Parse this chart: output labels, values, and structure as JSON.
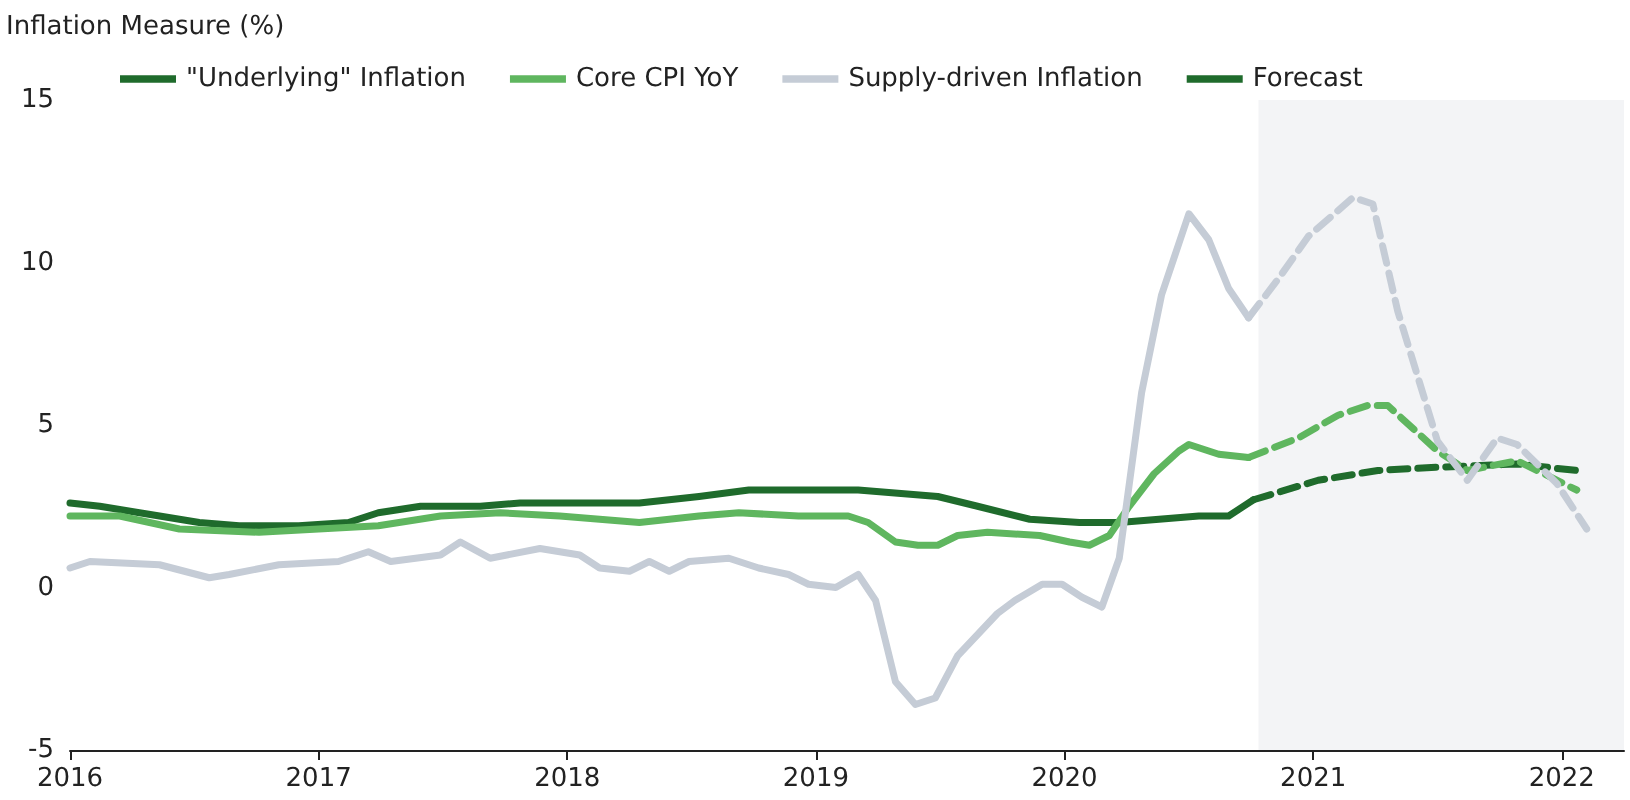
{
  "chart_data": {
    "type": "line",
    "ylabel": "Inflation Measure (%)",
    "xlim": [
      2016,
      2022.25
    ],
    "xticks": [
      2016,
      2017,
      2018,
      2019,
      2020,
      2021,
      2022
    ],
    "ylim": [
      -5,
      15
    ],
    "yticks": [
      -5,
      0,
      5,
      10,
      15
    ],
    "grid": false,
    "legend": "top",
    "marker": "none",
    "bands": [
      {
        "axis": "x",
        "from": 2020.78,
        "to": 2022.25,
        "color": "#f3f4f6"
      }
    ],
    "series": [
      {
        "name": "\"Underlying\" Inflation",
        "color": "#1f6b2c",
        "line_style": "solid",
        "x": [
          2016.0,
          2016.12,
          2016.36,
          2016.52,
          2016.68,
          2016.92,
          2017.12,
          2017.24,
          2017.41,
          2017.65,
          2017.81,
          2018.05,
          2018.29,
          2018.53,
          2018.73,
          2018.93,
          2019.17,
          2019.33,
          2019.49,
          2019.65,
          2019.86,
          2020.06,
          2020.22,
          2020.38,
          2020.54,
          2020.66,
          2020.76
        ],
        "values": [
          2.6,
          2.5,
          2.2,
          2.0,
          1.9,
          1.9,
          2.0,
          2.3,
          2.5,
          2.5,
          2.6,
          2.6,
          2.6,
          2.8,
          3.0,
          3.0,
          3.0,
          2.9,
          2.8,
          2.5,
          2.1,
          2.0,
          2.0,
          2.1,
          2.2,
          2.2,
          2.7
        ]
      },
      {
        "name": "Core CPI YoY",
        "color": "#5fb65f",
        "line_style": "solid",
        "x": [
          2016.0,
          2016.2,
          2016.44,
          2016.76,
          2017.0,
          2017.24,
          2017.49,
          2017.73,
          2017.97,
          2018.29,
          2018.53,
          2018.69,
          2018.93,
          2019.13,
          2019.21,
          2019.32,
          2019.41,
          2019.49,
          2019.57,
          2019.69,
          2019.9,
          2020.02,
          2020.1,
          2020.18,
          2020.26,
          2020.36,
          2020.46,
          2020.5,
          2020.62,
          2020.74
        ],
        "values": [
          2.2,
          2.2,
          1.8,
          1.7,
          1.8,
          1.9,
          2.2,
          2.3,
          2.2,
          2.0,
          2.2,
          2.3,
          2.2,
          2.2,
          2.0,
          1.4,
          1.3,
          1.3,
          1.6,
          1.7,
          1.6,
          1.4,
          1.3,
          1.6,
          2.5,
          3.5,
          4.2,
          4.4,
          4.1,
          4.0
        ]
      },
      {
        "name": "Supply-driven Inflation",
        "color": "#c5ccd6",
        "line_style": "solid",
        "x": [
          2016.0,
          2016.08,
          2016.36,
          2016.56,
          2016.64,
          2016.84,
          2017.08,
          2017.2,
          2017.29,
          2017.49,
          2017.57,
          2017.69,
          2017.89,
          2018.05,
          2018.13,
          2018.25,
          2018.33,
          2018.41,
          2018.49,
          2018.65,
          2018.77,
          2018.89,
          2018.97,
          2019.08,
          2019.17,
          2019.24,
          2019.32,
          2019.4,
          2019.48,
          2019.57,
          2019.73,
          2019.8,
          2019.91,
          2019.99,
          2020.07,
          2020.15,
          2020.22,
          2020.31,
          2020.39,
          2020.5,
          2020.58,
          2020.66,
          2020.74
        ],
        "values": [
          0.6,
          0.8,
          0.7,
          0.3,
          0.4,
          0.7,
          0.8,
          1.1,
          0.8,
          1.0,
          1.4,
          0.9,
          1.2,
          1.0,
          0.6,
          0.5,
          0.8,
          0.5,
          0.8,
          0.9,
          0.6,
          0.4,
          0.1,
          0.0,
          0.4,
          -0.4,
          -2.9,
          -3.6,
          -3.4,
          -2.1,
          -0.8,
          -0.4,
          0.1,
          0.1,
          -0.3,
          -0.6,
          0.9,
          6.0,
          9.0,
          11.5,
          10.7,
          9.2,
          8.3
        ]
      },
      {
        "name": "Forecast",
        "color": "#1f6b2c",
        "line_style": "dashed",
        "x": [
          2020.76,
          2021.02,
          2021.26,
          2021.5,
          2021.82,
          2022.06
        ],
        "values": [
          2.7,
          3.3,
          3.6,
          3.7,
          3.8,
          3.6
        ]
      },
      {
        "color": "#5fb65f",
        "line_style": "dashed",
        "x": [
          2020.74,
          2020.94,
          2021.1,
          2021.22,
          2021.3,
          2021.5,
          2021.62,
          2021.82,
          2022.06
        ],
        "values": [
          4.0,
          4.6,
          5.3,
          5.6,
          5.6,
          4.2,
          3.6,
          3.9,
          3.0
        ]
      },
      {
        "color": "#c5ccd6",
        "line_style": "dashed",
        "x": [
          2020.74,
          2020.86,
          2020.98,
          2021.16,
          2021.24,
          2021.34,
          2021.5,
          2021.62,
          2021.74,
          2021.82,
          2021.98,
          2022.1
        ],
        "values": [
          8.3,
          9.5,
          10.8,
          12.0,
          11.8,
          8.5,
          4.5,
          3.3,
          4.6,
          4.4,
          3.2,
          1.8
        ]
      }
    ]
  }
}
